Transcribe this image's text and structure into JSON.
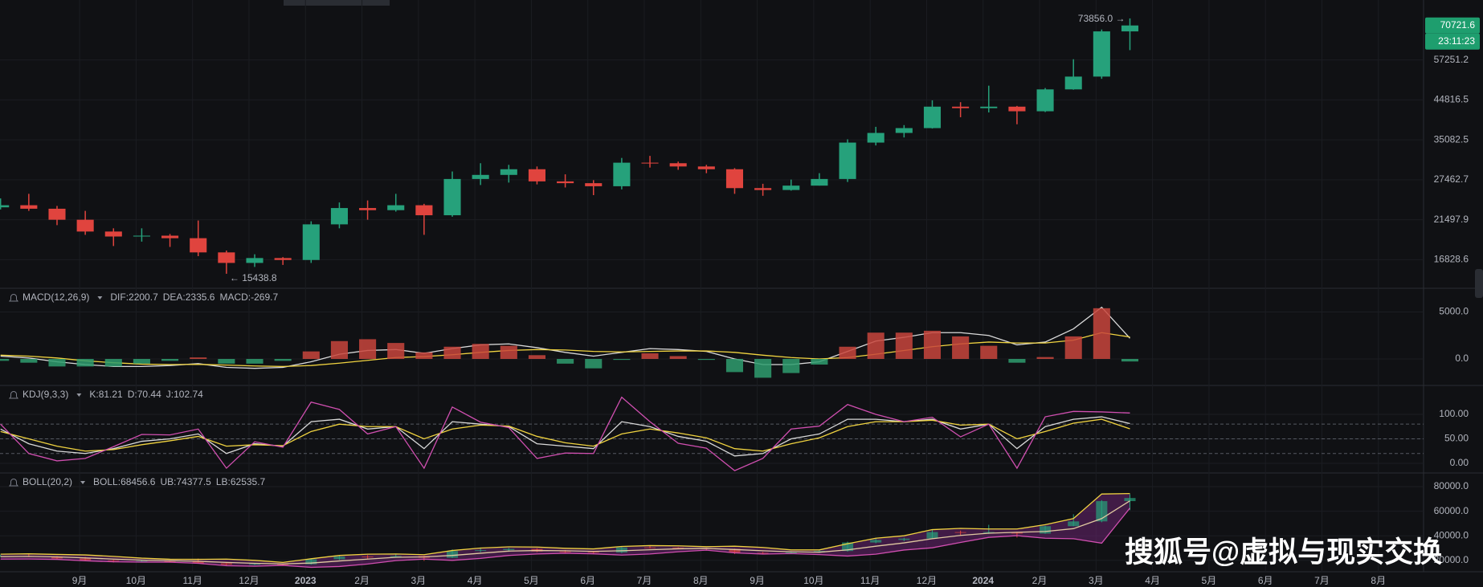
{
  "watermark": "搜狐号@虚拟与现实交换",
  "chart_data": [
    {
      "type": "candlestick",
      "log_scale": true,
      "grid": true,
      "up_color": "#26a17b",
      "down_color": "#e0443e",
      "x": [
        -1.4,
        -0.9,
        -0.4,
        0.1,
        0.6,
        1.1,
        1.6,
        2.1,
        2.6,
        3.1,
        3.6,
        4.1,
        4.6,
        5.1,
        5.6,
        6.1,
        6.6,
        7.1,
        7.6,
        8.1,
        8.6,
        9.1,
        9.6,
        10.1,
        10.6,
        11.1,
        11.6,
        12.1,
        12.6,
        13.1,
        13.6,
        14.1,
        14.6,
        15.1,
        15.6,
        16.1,
        16.6,
        17.1,
        17.6,
        18.1,
        18.6
      ],
      "open": [
        23200,
        23500,
        23000,
        21500,
        20000,
        19400,
        19500,
        19200,
        17600,
        16500,
        17000,
        16800,
        20900,
        23100,
        22800,
        23500,
        22100,
        27600,
        28300,
        29300,
        27200,
        26900,
        26400,
        30500,
        30400,
        29800,
        29300,
        26100,
        25800,
        26500,
        27600,
        34500,
        36600,
        37700,
        43000,
        42600,
        43000,
        41800,
        47800,
        51700,
        68200
      ],
      "high": [
        24500,
        25200,
        23400,
        22700,
        20400,
        20400,
        19700,
        21400,
        17800,
        17400,
        17100,
        21300,
        23900,
        24200,
        25200,
        23700,
        28900,
        30400,
        30100,
        29800,
        28400,
        27400,
        31400,
        31800,
        30700,
        30100,
        29500,
        26800,
        27500,
        28600,
        35200,
        38000,
        38400,
        44700,
        44200,
        48900,
        43200,
        48200,
        57500,
        69000,
        73856
      ],
      "low": [
        22900,
        22700,
        20800,
        19600,
        18300,
        18800,
        18200,
        17200,
        15438.8,
        16100,
        16300,
        16500,
        20400,
        21500,
        22600,
        19600,
        21900,
        26600,
        27000,
        26700,
        26200,
        25000,
        25900,
        29600,
        29200,
        28600,
        25200,
        24900,
        25700,
        26500,
        27100,
        33900,
        35600,
        37600,
        40300,
        41500,
        38600,
        41600,
        47700,
        51000,
        60800
      ],
      "close": [
        23500,
        23000,
        21500,
        20000,
        19400,
        19500,
        19200,
        17600,
        16500,
        17000,
        16800,
        20900,
        23100,
        22800,
        23500,
        22100,
        27600,
        28300,
        29300,
        27200,
        26900,
        26400,
        30500,
        30400,
        29800,
        29300,
        26100,
        25800,
        26500,
        27600,
        34500,
        36600,
        37700,
        43000,
        42600,
        43000,
        41800,
        47800,
        51700,
        68200,
        70721.6
      ],
      "xlim": [
        -1.41,
        23.8
      ],
      "ylim": [
        14125,
        82670
      ],
      "yticks": [
        16828.6,
        21497.9,
        27462.7,
        35082.5,
        44816.5,
        57251.2
      ],
      "annotations": [
        {
          "text": "73856.0 →",
          "at": "high"
        },
        {
          "text": "← 15438.8",
          "at": "low"
        }
      ],
      "last_price": 70721.6,
      "last_price_color": "#1e9e6e",
      "countdown": "23:11:23"
    },
    {
      "type": "macd",
      "title": "MACD(12,26,9)",
      "ylim": [
        -2821,
        7521
      ],
      "yticks": [
        {
          "value": 5000,
          "label": "5000.0"
        },
        {
          "value": 0,
          "label": "0.0"
        }
      ],
      "series": [
        {
          "label": "DIF:2200.7",
          "color": "#d9d9d9",
          "style": "line",
          "values": [
            300,
            100,
            -300,
            -600,
            -800,
            -800,
            -700,
            -500,
            -900,
            -1000,
            -900,
            -300,
            500,
            900,
            1000,
            600,
            1100,
            1500,
            1600,
            1200,
            700,
            300,
            700,
            1100,
            1000,
            800,
            0,
            -600,
            -600,
            -300,
            800,
            1900,
            2300,
            2800,
            2800,
            2500,
            1500,
            1800,
            3200,
            5500,
            2200.7
          ]
        },
        {
          "label": "DEA:2335.6",
          "color": "#f0d340",
          "style": "line",
          "values": [
            400,
            300,
            100,
            -200,
            -400,
            -550,
            -600,
            -580,
            -650,
            -750,
            -800,
            -700,
            -450,
            -150,
            150,
            250,
            450,
            700,
            900,
            1000,
            950,
            800,
            750,
            800,
            850,
            850,
            700,
            400,
            150,
            0,
            150,
            500,
            900,
            1300,
            1600,
            1800,
            1700,
            1700,
            2000,
            2800,
            2335.6
          ]
        },
        {
          "label": "MACD:-269.7",
          "color": "#2f9e6f",
          "up_color": "#c8453c",
          "style": "histogram",
          "values": [
            -200,
            -400,
            -800,
            -800,
            -800,
            -500,
            -200,
            160,
            -500,
            -500,
            -200,
            800,
            1900,
            2100,
            1700,
            700,
            1300,
            1600,
            1400,
            400,
            -500,
            -1000,
            -100,
            600,
            300,
            -100,
            -1400,
            -2000,
            -1500,
            -600,
            1300,
            2800,
            2800,
            3000,
            2400,
            1400,
            -400,
            200,
            2400,
            5400,
            -269.7
          ]
        }
      ]
    },
    {
      "type": "kdj",
      "title": "KDJ(9,3,3)",
      "ylim": [
        -19.7,
        159
      ],
      "yticks": [
        {
          "value": 100,
          "label": "100.00"
        },
        {
          "value": 50,
          "label": "50.00"
        },
        {
          "value": 0,
          "label": "0.00"
        }
      ],
      "levels": [
        80,
        50,
        20
      ],
      "series": [
        {
          "label": "K:81.21",
          "color": "#d9d9d9",
          "style": "line",
          "values": [
            70,
            40,
            25,
            20,
            30,
            45,
            50,
            60,
            20,
            40,
            35,
            85,
            90,
            70,
            75,
            30,
            85,
            80,
            75,
            40,
            35,
            30,
            85,
            75,
            55,
            45,
            15,
            20,
            50,
            60,
            90,
            90,
            85,
            90,
            70,
            80,
            30,
            75,
            90,
            95,
            81.21
          ]
        },
        {
          "label": "D:70.44",
          "color": "#f0d340",
          "style": "line",
          "values": [
            65,
            50,
            35,
            25,
            28,
            38,
            46,
            55,
            35,
            38,
            36,
            65,
            80,
            75,
            75,
            50,
            70,
            78,
            76,
            55,
            42,
            35,
            60,
            70,
            62,
            52,
            30,
            25,
            40,
            52,
            75,
            85,
            85,
            88,
            78,
            80,
            50,
            65,
            82,
            90,
            70.44
          ]
        },
        {
          "label": "J:102.74",
          "color": "#d04fb0",
          "style": "line",
          "values": [
            80,
            20,
            5,
            10,
            34,
            59,
            58,
            70,
            -10,
            44,
            33,
            125,
            110,
            60,
            75,
            -10,
            115,
            84,
            73,
            10,
            21,
            20,
            135,
            85,
            41,
            31,
            -15,
            10,
            70,
            76,
            120,
            100,
            85,
            94,
            54,
            80,
            -10,
            95,
            106,
            105,
            102.74
          ]
        }
      ]
    },
    {
      "type": "boll",
      "title": "BOLL(20,2)",
      "show_candles": true,
      "fill_color": "#6a2470",
      "ylim": [
        10720,
        91100
      ],
      "yticks": [
        {
          "value": 80000,
          "label": "80000.0"
        },
        {
          "value": 60000,
          "label": "60000.0"
        },
        {
          "value": 40000,
          "label": "40000.0"
        },
        {
          "value": 20000,
          "label": "20000.0"
        }
      ],
      "series": [
        {
          "label": "BOLL:68456.6",
          "color": "#e0c9a0",
          "style": "line",
          "values": [
            23000,
            23200,
            22800,
            22000,
            21000,
            20200,
            19700,
            19200,
            18300,
            17600,
            17100,
            17800,
            19500,
            21000,
            22500,
            22800,
            24000,
            25800,
            27500,
            28000,
            27800,
            27300,
            27800,
            28600,
            29400,
            29700,
            28800,
            27800,
            27000,
            26600,
            28500,
            31500,
            34200,
            37600,
            40300,
            42100,
            42800,
            43500,
            45800,
            54000,
            68456.6
          ]
        },
        {
          "label": "UB:74377.5",
          "color": "#f0d340",
          "style": "line",
          "values": [
            25000,
            25300,
            24800,
            24400,
            23200,
            21800,
            20900,
            20800,
            21000,
            20000,
            18300,
            21300,
            24000,
            25000,
            25200,
            24600,
            28000,
            30000,
            31000,
            30800,
            29800,
            29300,
            31300,
            32000,
            31800,
            31100,
            31500,
            30500,
            28500,
            28500,
            33500,
            38000,
            40000,
            45000,
            46000,
            45500,
            45500,
            49000,
            54000,
            74000,
            74377.5
          ]
        },
        {
          "label": "LB:62535.7",
          "color": "#d04fb0",
          "style": "line",
          "values": [
            21000,
            21100,
            20800,
            19600,
            18800,
            18600,
            18500,
            17600,
            15600,
            15200,
            15900,
            14300,
            15000,
            17000,
            19800,
            21000,
            20000,
            21600,
            24000,
            25200,
            25800,
            25300,
            24300,
            25200,
            27000,
            28300,
            26100,
            25100,
            25500,
            24700,
            23500,
            25000,
            28400,
            30200,
            34600,
            38700,
            40100,
            38000,
            37600,
            34000,
            62535.7
          ]
        }
      ],
      "xticks": [
        {
          "value": 0,
          "label": "9月"
        },
        {
          "value": 1,
          "label": "10月"
        },
        {
          "value": 2,
          "label": "11月"
        },
        {
          "value": 3,
          "label": "12月"
        },
        {
          "value": 4,
          "label": "2023"
        },
        {
          "value": 5,
          "label": "2月"
        },
        {
          "value": 6,
          "label": "3月"
        },
        {
          "value": 7,
          "label": "4月"
        },
        {
          "value": 8,
          "label": "5月"
        },
        {
          "value": 9,
          "label": "6月"
        },
        {
          "value": 10,
          "label": "7月"
        },
        {
          "value": 11,
          "label": "8月"
        },
        {
          "value": 12,
          "label": "9月"
        },
        {
          "value": 13,
          "label": "10月"
        },
        {
          "value": 14,
          "label": "11月"
        },
        {
          "value": 15,
          "label": "12月"
        },
        {
          "value": 16,
          "label": "2024"
        },
        {
          "value": 17,
          "label": "2月"
        },
        {
          "value": 18,
          "label": "3月"
        },
        {
          "value": 19,
          "label": "4月"
        },
        {
          "value": 20,
          "label": "5月"
        },
        {
          "value": 21,
          "label": "6月"
        },
        {
          "value": 22,
          "label": "7月"
        },
        {
          "value": 23,
          "label": "8月"
        }
      ]
    }
  ]
}
